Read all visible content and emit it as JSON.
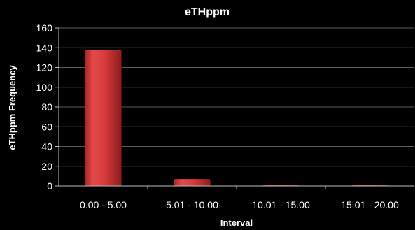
{
  "chart_data": {
    "type": "bar",
    "title": "eTHppm",
    "xlabel": "Interval",
    "ylabel": "eTHppm Frequency",
    "categories": [
      "0.00 - 5.00",
      "5.01 - 10.00",
      "10.01 - 15.00",
      "15.01 - 20.00"
    ],
    "values": [
      138,
      7,
      0,
      1
    ],
    "ylim": [
      0,
      160
    ],
    "yticks": [
      "0",
      "20",
      "40",
      "60",
      "80",
      "100",
      "120",
      "140",
      "160"
    ],
    "grid": true,
    "legend": "none",
    "colors": {
      "background": "#000000",
      "bar": "#d63a3a",
      "grid": "#5a5a5a",
      "text": "#ffffff"
    }
  }
}
